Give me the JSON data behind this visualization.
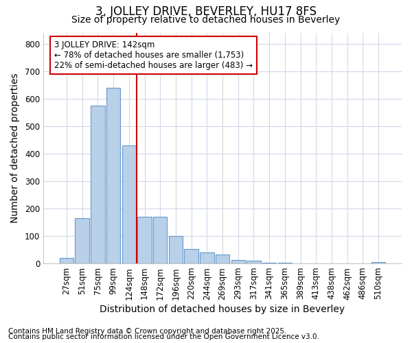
{
  "title": "3, JOLLEY DRIVE, BEVERLEY, HU17 8FS",
  "subtitle": "Size of property relative to detached houses in Beverley",
  "xlabel": "Distribution of detached houses by size in Beverley",
  "ylabel": "Number of detached properties",
  "categories": [
    "27sqm",
    "51sqm",
    "75sqm",
    "99sqm",
    "124sqm",
    "148sqm",
    "172sqm",
    "196sqm",
    "220sqm",
    "244sqm",
    "269sqm",
    "293sqm",
    "317sqm",
    "341sqm",
    "365sqm",
    "389sqm",
    "413sqm",
    "438sqm",
    "462sqm",
    "486sqm",
    "510sqm"
  ],
  "values": [
    20,
    165,
    575,
    640,
    430,
    170,
    170,
    100,
    52,
    40,
    32,
    13,
    10,
    3,
    2,
    1,
    0,
    0,
    0,
    0,
    4
  ],
  "bar_color": "#b8d0e8",
  "bar_edge_color": "#6699cc",
  "vline_x_index": 5,
  "vline_color": "#cc0000",
  "annotation_text": "3 JOLLEY DRIVE: 142sqm\n← 78% of detached houses are smaller (1,753)\n22% of semi-detached houses are larger (483) →",
  "annotation_box_facecolor": "white",
  "annotation_box_edgecolor": "#cc0000",
  "footnote1": "Contains HM Land Registry data © Crown copyright and database right 2025.",
  "footnote2": "Contains public sector information licensed under the Open Government Licence v3.0.",
  "ylim": [
    0,
    840
  ],
  "yticks": [
    0,
    100,
    200,
    300,
    400,
    500,
    600,
    700,
    800
  ],
  "background_color": "#ffffff",
  "plot_background_color": "#ffffff",
  "grid_color": "#d0d8e8",
  "title_fontsize": 12,
  "subtitle_fontsize": 10,
  "axis_label_fontsize": 10,
  "tick_fontsize": 8.5,
  "annotation_fontsize": 8.5,
  "footnote_fontsize": 7.5
}
